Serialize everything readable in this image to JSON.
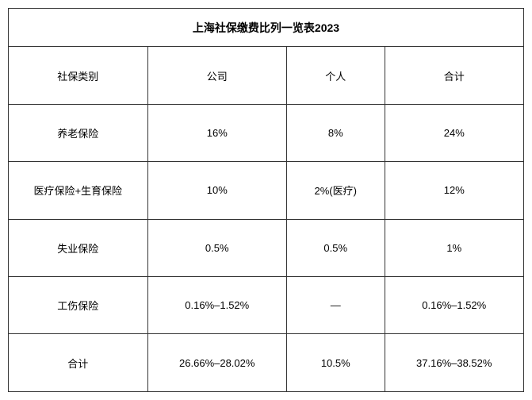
{
  "table": {
    "title": "上海社保缴费比列一览表2023",
    "columns": [
      "社保类别",
      "公司",
      "个人",
      "合计"
    ],
    "rows": [
      [
        "养老保险",
        "16%",
        "8%",
        "24%"
      ],
      [
        "医疗保险+生育保险",
        "10%",
        "2%(医疗)",
        "12%"
      ],
      [
        "失业保险",
        "0.5%",
        "0.5%",
        "1%"
      ],
      [
        "工伤保险",
        "0.16%–1.52%",
        "—",
        "0.16%–1.52%"
      ],
      [
        "合计",
        "26.66%–28.02%",
        "10.5%",
        "37.16%–38.52%"
      ]
    ],
    "border_color": "#333333",
    "background_color": "#ffffff",
    "text_color": "#000000",
    "title_fontsize": 14,
    "cell_fontsize": 13,
    "column_widths_pct": [
      27,
      27,
      19,
      27
    ]
  }
}
